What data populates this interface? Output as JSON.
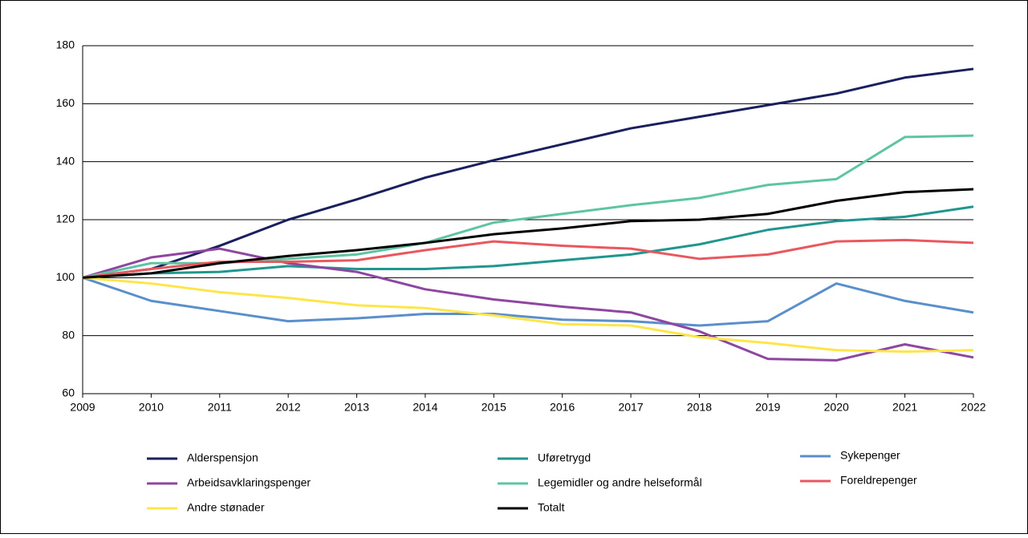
{
  "chart_data": {
    "type": "line",
    "x": [
      2009,
      2010,
      2011,
      2012,
      2013,
      2014,
      2015,
      2016,
      2017,
      2018,
      2019,
      2020,
      2021,
      2022
    ],
    "xlim": [
      2009,
      2022
    ],
    "xticks": [
      2009,
      2010,
      2011,
      2012,
      2013,
      2014,
      2015,
      2016,
      2017,
      2018,
      2019,
      2020,
      2021,
      2022
    ],
    "ylim": [
      60,
      180
    ],
    "yticks": [
      60,
      80,
      100,
      120,
      140,
      160,
      180
    ],
    "grid": true,
    "series": [
      {
        "name": "Alderspensjon",
        "color": "#1b1f5e",
        "values": [
          100,
          103,
          111,
          120,
          127,
          134.5,
          140.5,
          146,
          151.5,
          155.5,
          159.5,
          163.5,
          169,
          172
        ]
      },
      {
        "name": "Uføretrygd",
        "color": "#20968e",
        "values": [
          100,
          101.5,
          102,
          104,
          103,
          103,
          104,
          106,
          108,
          111.5,
          116.5,
          119.5,
          121,
          124.5
        ]
      },
      {
        "name": "Sykepenger",
        "color": "#5b8fcb",
        "values": [
          100,
          92,
          88.5,
          85,
          86,
          87.5,
          87.5,
          85.5,
          85,
          83.5,
          85,
          98,
          92,
          88
        ]
      },
      {
        "name": "Arbeidsavklaringspenger",
        "color": "#8e47a0",
        "values": [
          100,
          107,
          110,
          105,
          102,
          96,
          92.5,
          90,
          88,
          81.5,
          72,
          71.5,
          77,
          72.5
        ]
      },
      {
        "name": "Legemidler og andre helseformål",
        "color": "#5ec4a4",
        "values": [
          100,
          105,
          105,
          106.5,
          108,
          112,
          119,
          122,
          125,
          127.5,
          132,
          134,
          148.5,
          149
        ]
      },
      {
        "name": "Foreldrepenger",
        "color": "#e9585e",
        "values": [
          100,
          103,
          105.5,
          105.5,
          106,
          109.5,
          112.5,
          111,
          110,
          106.5,
          108,
          112.5,
          113,
          112
        ]
      },
      {
        "name": "Andre stønader",
        "color": "#fde54a",
        "values": [
          100,
          98,
          95,
          93,
          90.5,
          89.5,
          87,
          84,
          83.5,
          79.5,
          77.5,
          75,
          74.5,
          75
        ]
      },
      {
        "name": "Totalt",
        "color": "#000000",
        "values": [
          100,
          101.5,
          105,
          107.5,
          109.5,
          112,
          115,
          117,
          119.5,
          120,
          122,
          126.5,
          129.5,
          130.5
        ]
      }
    ]
  }
}
